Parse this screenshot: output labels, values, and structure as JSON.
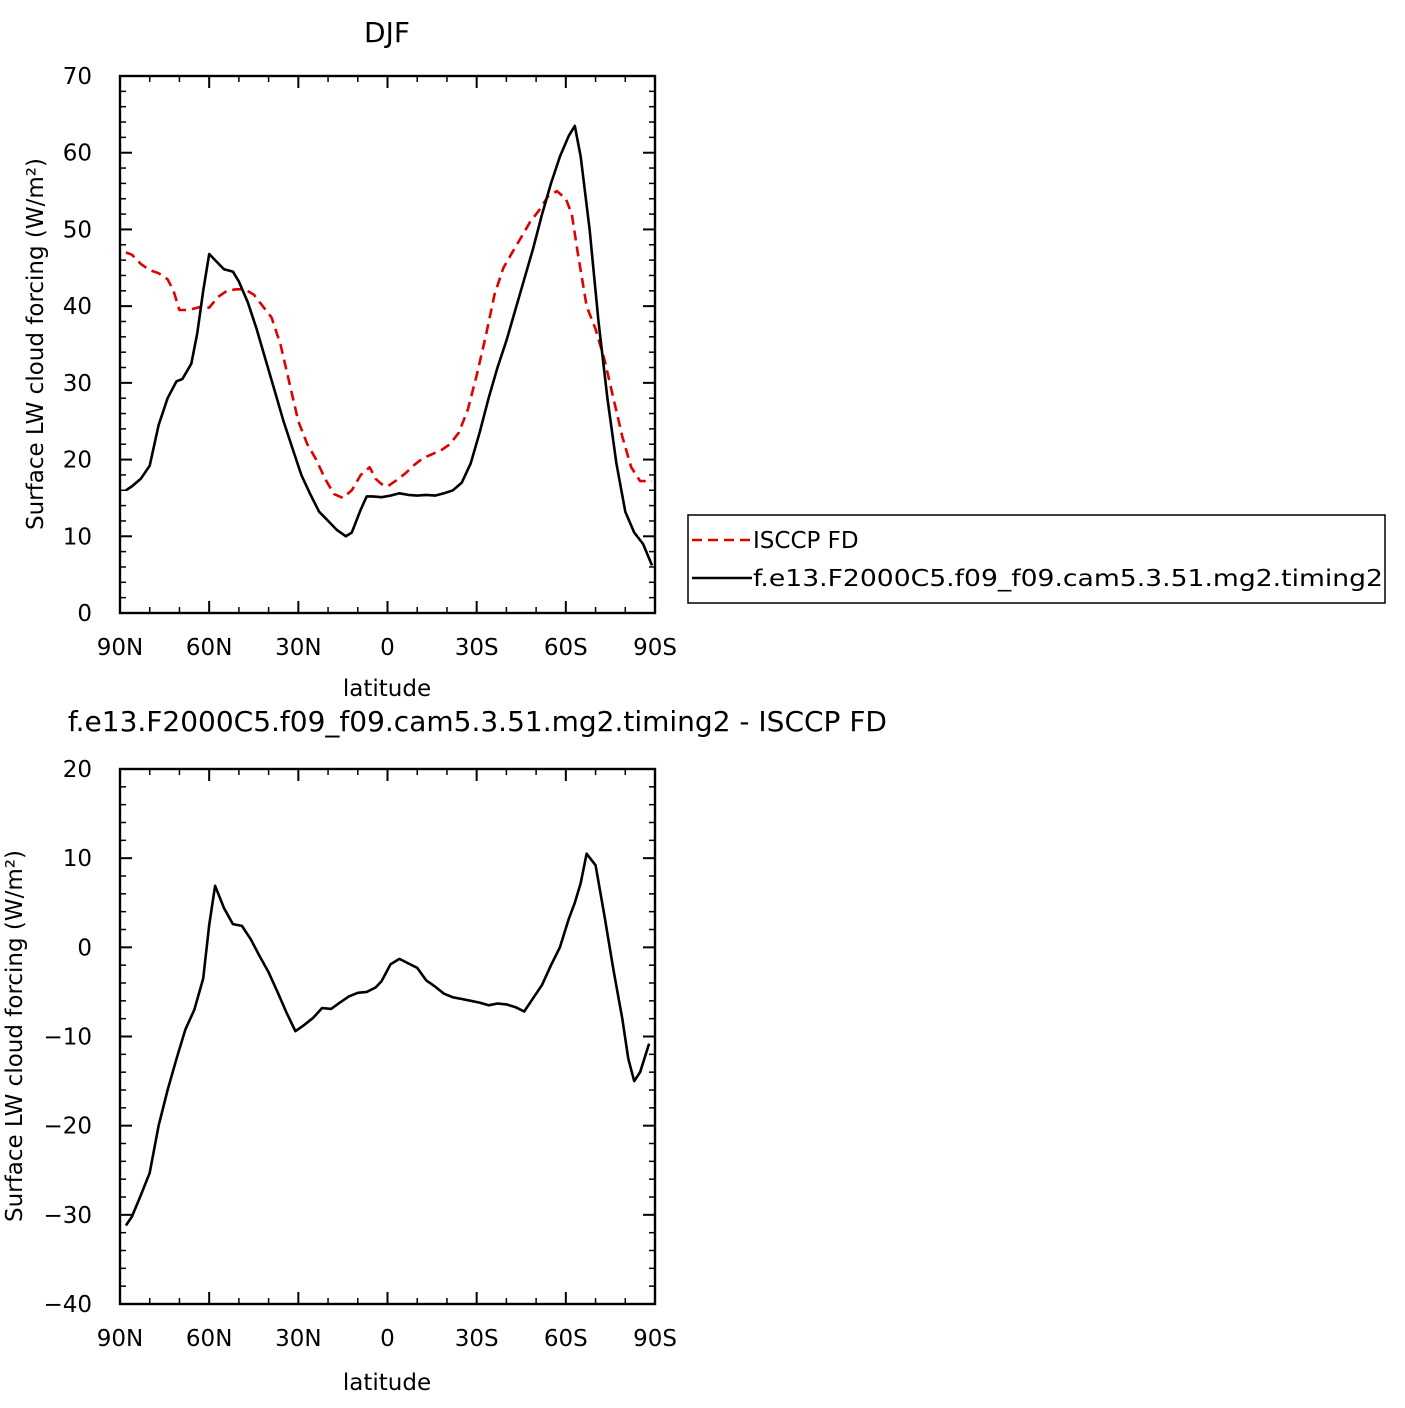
{
  "chart_data": [
    {
      "type": "line",
      "title": "DJF",
      "xlabel": "latitude",
      "ylabel": "Surface LW cloud forcing (W/m²)",
      "xlim": [
        -90,
        90
      ],
      "ylim": [
        0,
        70
      ],
      "x_tick_values": [
        -90,
        -60,
        -30,
        0,
        30,
        60,
        90
      ],
      "x_tick_labels": [
        "90N",
        "60N",
        "30N",
        "0",
        "30S",
        "60S",
        "90S"
      ],
      "y_tick_values": [
        0,
        10,
        20,
        30,
        40,
        50,
        60,
        70
      ],
      "y_tick_labels": [
        "0",
        "10",
        "20",
        "30",
        "40",
        "50",
        "60",
        "70"
      ],
      "grid": false,
      "legend_position": "right",
      "series": [
        {
          "name": "ISCCP FD",
          "color": "#e00000",
          "dash": "dashed",
          "x": [
            -88,
            -86,
            -83,
            -80,
            -77,
            -74,
            -72,
            -70,
            -67,
            -64,
            -62,
            -60,
            -57,
            -54,
            -51,
            -48,
            -45,
            -42,
            -39,
            -36,
            -33,
            -30,
            -27,
            -24,
            -21,
            -18,
            -15,
            -12,
            -9,
            -6,
            -4,
            -2,
            0,
            3,
            6,
            9,
            12,
            15,
            18,
            21,
            24,
            27,
            30,
            33,
            36,
            39,
            42,
            45,
            48,
            51,
            54,
            57,
            60,
            62,
            64,
            67,
            70,
            73,
            76,
            79,
            82,
            85,
            87,
            89
          ],
          "y": [
            47,
            46.7,
            45.5,
            44.7,
            44.3,
            43.5,
            42,
            39.5,
            39.5,
            39.8,
            40,
            39.8,
            41.2,
            42,
            42.2,
            42.2,
            41.5,
            40,
            38.5,
            35,
            30,
            25,
            22,
            20,
            17.5,
            15.5,
            15,
            16,
            18,
            19,
            17.5,
            16.8,
            16.5,
            17.3,
            18.2,
            19.3,
            20.2,
            20.7,
            21.2,
            22,
            23.5,
            26.5,
            31,
            36,
            41.5,
            45,
            47,
            49,
            51,
            52.5,
            54.3,
            55,
            54,
            52,
            47,
            40,
            37,
            33,
            28,
            23,
            19,
            17.2,
            17.2,
            17.2
          ]
        },
        {
          "name": "f.e13.F2000C5.f09_f09.cam5.3.51.mg2.timing2",
          "color": "#000000",
          "dash": "solid",
          "x": [
            -88,
            -86,
            -83,
            -80,
            -77,
            -74,
            -71,
            -69,
            -66,
            -64,
            -62,
            -60,
            -58,
            -55,
            -52,
            -50,
            -47,
            -44,
            -41,
            -38,
            -35,
            -32,
            -29,
            -26,
            -23,
            -20,
            -17,
            -14,
            -12,
            -9,
            -7,
            -5,
            -2,
            1,
            4,
            7,
            10,
            13,
            16,
            19,
            22,
            25,
            28,
            31,
            34,
            37,
            40,
            43,
            46,
            49,
            52,
            55,
            58,
            61,
            63,
            65,
            68,
            71,
            74,
            77,
            80,
            83,
            86,
            89
          ],
          "y": [
            16,
            16.5,
            17.5,
            19.2,
            24.5,
            28,
            30.2,
            30.5,
            32.5,
            36.5,
            42,
            46.8,
            46,
            44.8,
            44.5,
            43.2,
            40.5,
            37,
            33,
            29,
            25,
            21.5,
            18,
            15.5,
            13.2,
            12,
            10.8,
            10,
            10.5,
            13.5,
            15.2,
            15.2,
            15.1,
            15.3,
            15.6,
            15.4,
            15.3,
            15.4,
            15.3,
            15.6,
            16,
            17,
            19.5,
            23.5,
            28,
            32,
            35.5,
            39.5,
            43.5,
            47.5,
            52,
            56,
            59.5,
            62.2,
            63.5,
            59.5,
            50,
            38,
            28,
            19.5,
            13.2,
            10.5,
            9,
            6.2
          ]
        }
      ]
    },
    {
      "type": "line",
      "title": "f.e13.F2000C5.f09_f09.cam5.3.51.mg2.timing2 - ISCCP FD",
      "xlabel": "latitude",
      "ylabel": "Surface LW cloud forcing (W/m²)",
      "xlim": [
        -90,
        90
      ],
      "ylim": [
        -40,
        20
      ],
      "x_tick_values": [
        -90,
        -60,
        -30,
        0,
        30,
        60,
        90
      ],
      "x_tick_labels": [
        "90N",
        "60N",
        "30N",
        "0",
        "30S",
        "60S",
        "90S"
      ],
      "y_tick_values": [
        -40,
        -30,
        -20,
        -10,
        0,
        10,
        20
      ],
      "y_tick_labels": [
        "−40",
        "−30",
        "−20",
        "−10",
        "0",
        "10",
        "20"
      ],
      "grid": false,
      "series": [
        {
          "color": "#000000",
          "dash": "solid",
          "x": [
            -88,
            -86,
            -83,
            -80,
            -77,
            -74,
            -71,
            -68,
            -65,
            -62,
            -60,
            -58,
            -55,
            -52,
            -49,
            -46,
            -43,
            -40,
            -37,
            -34,
            -31,
            -28,
            -25,
            -22,
            -19,
            -16,
            -13,
            -10,
            -7,
            -4,
            -2,
            1,
            4,
            7,
            10,
            13,
            16,
            19,
            22,
            25,
            28,
            31,
            34,
            37,
            40,
            43,
            46,
            49,
            52,
            55,
            58,
            61,
            63,
            65,
            67,
            70,
            73,
            76,
            79,
            81,
            83,
            85,
            88
          ],
          "y": [
            -31.2,
            -30.2,
            -27.8,
            -25.3,
            -20,
            -16,
            -12.5,
            -9.2,
            -7,
            -3.5,
            2.5,
            6.9,
            4.4,
            2.6,
            2.4,
            0.9,
            -1,
            -2.8,
            -5,
            -7.3,
            -9.4,
            -8.7,
            -7.9,
            -6.8,
            -6.9,
            -6.2,
            -5.5,
            -5.1,
            -5,
            -4.5,
            -3.8,
            -1.9,
            -1.3,
            -1.8,
            -2.3,
            -3.7,
            -4.4,
            -5.2,
            -5.6,
            -5.8,
            -6,
            -6.2,
            -6.5,
            -6.3,
            -6.4,
            -6.7,
            -7.2,
            -5.7,
            -4.2,
            -2,
            0,
            3.2,
            5,
            7.2,
            10.5,
            9.2,
            3.5,
            -2.5,
            -8,
            -12.5,
            -15,
            -14,
            -10.8
          ]
        }
      ]
    }
  ]
}
